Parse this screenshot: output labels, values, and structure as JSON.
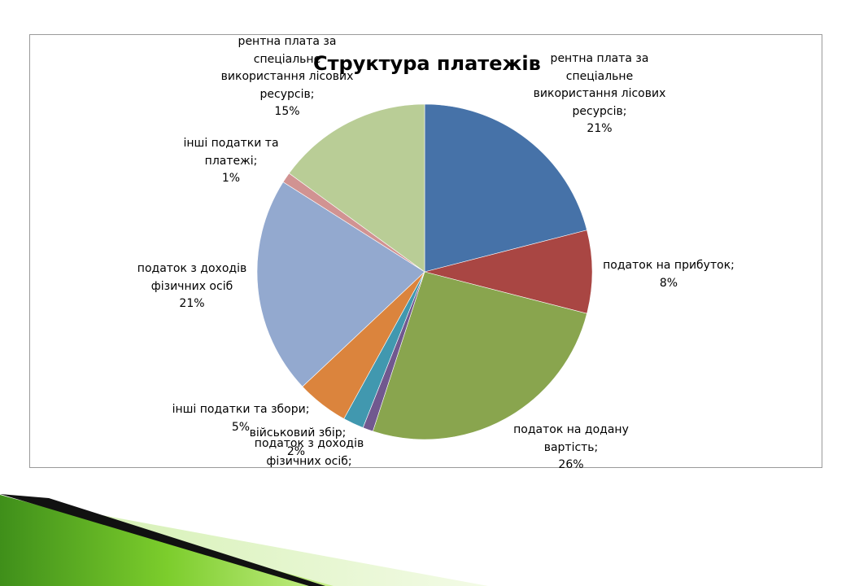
{
  "chart_data": {
    "type": "pie",
    "title": "Структура платежів",
    "slices": [
      {
        "label": "рентна плата за спеціальне використання лісових ресурсів",
        "value": 21,
        "value_label": "21%",
        "color": "#4672A8"
      },
      {
        "label": "податок на прибуток",
        "value": 8,
        "value_label": "8%",
        "color": "#A94643"
      },
      {
        "label": "податок на додану вартість",
        "value": 26,
        "value_label": "26%",
        "color": "#89A54E"
      },
      {
        "label": "військовий збір",
        "value": 1,
        "value_label": "",
        "color": "#71588F"
      },
      {
        "label": "податок з доходів фізичних осіб",
        "value": 2,
        "value_label": "2%",
        "color": "#4198AF"
      },
      {
        "label": "інші податки та збори",
        "value": 5,
        "value_label": "5%",
        "color": "#DB843D"
      },
      {
        "label": "податок з доходів фізичних осіб",
        "value": 21,
        "value_label": "21%",
        "color": "#93A9CF"
      },
      {
        "label": "інші податки та платежі",
        "value": 1,
        "value_label": "1%",
        "color": "#D19392"
      },
      {
        "label": "рентна плата за спеціальне використання лісових ресурсів",
        "value": 15,
        "value_label": "15%",
        "color": "#B9CD96"
      }
    ],
    "labels": [
      {
        "lines": [
          "рентна плата за",
          "спеціальне",
          "використання лісових",
          "ресурсів;",
          "21%"
        ]
      },
      {
        "lines": [
          "податок на прибуток;",
          "8%"
        ]
      },
      {
        "lines": [
          "податок на додану",
          "вартість;",
          "26%"
        ]
      },
      {
        "lines": [
          "військовий збір;"
        ]
      },
      {
        "lines": [
          "податок з доходів",
          "фізичних осіб;"
        ]
      },
      {
        "lines": [
          "2%"
        ]
      },
      {
        "lines": [
          "інші податки та збори;",
          "5%"
        ]
      },
      {
        "lines": [
          "податок з доходів",
          "фізичних осіб",
          "21%"
        ]
      },
      {
        "lines": [
          "інші податки та",
          "платежі;",
          "1%"
        ]
      },
      {
        "lines": [
          "рентна плата за",
          "спеціальне",
          "використання лісових",
          "ресурсів;",
          "15%"
        ]
      }
    ]
  }
}
